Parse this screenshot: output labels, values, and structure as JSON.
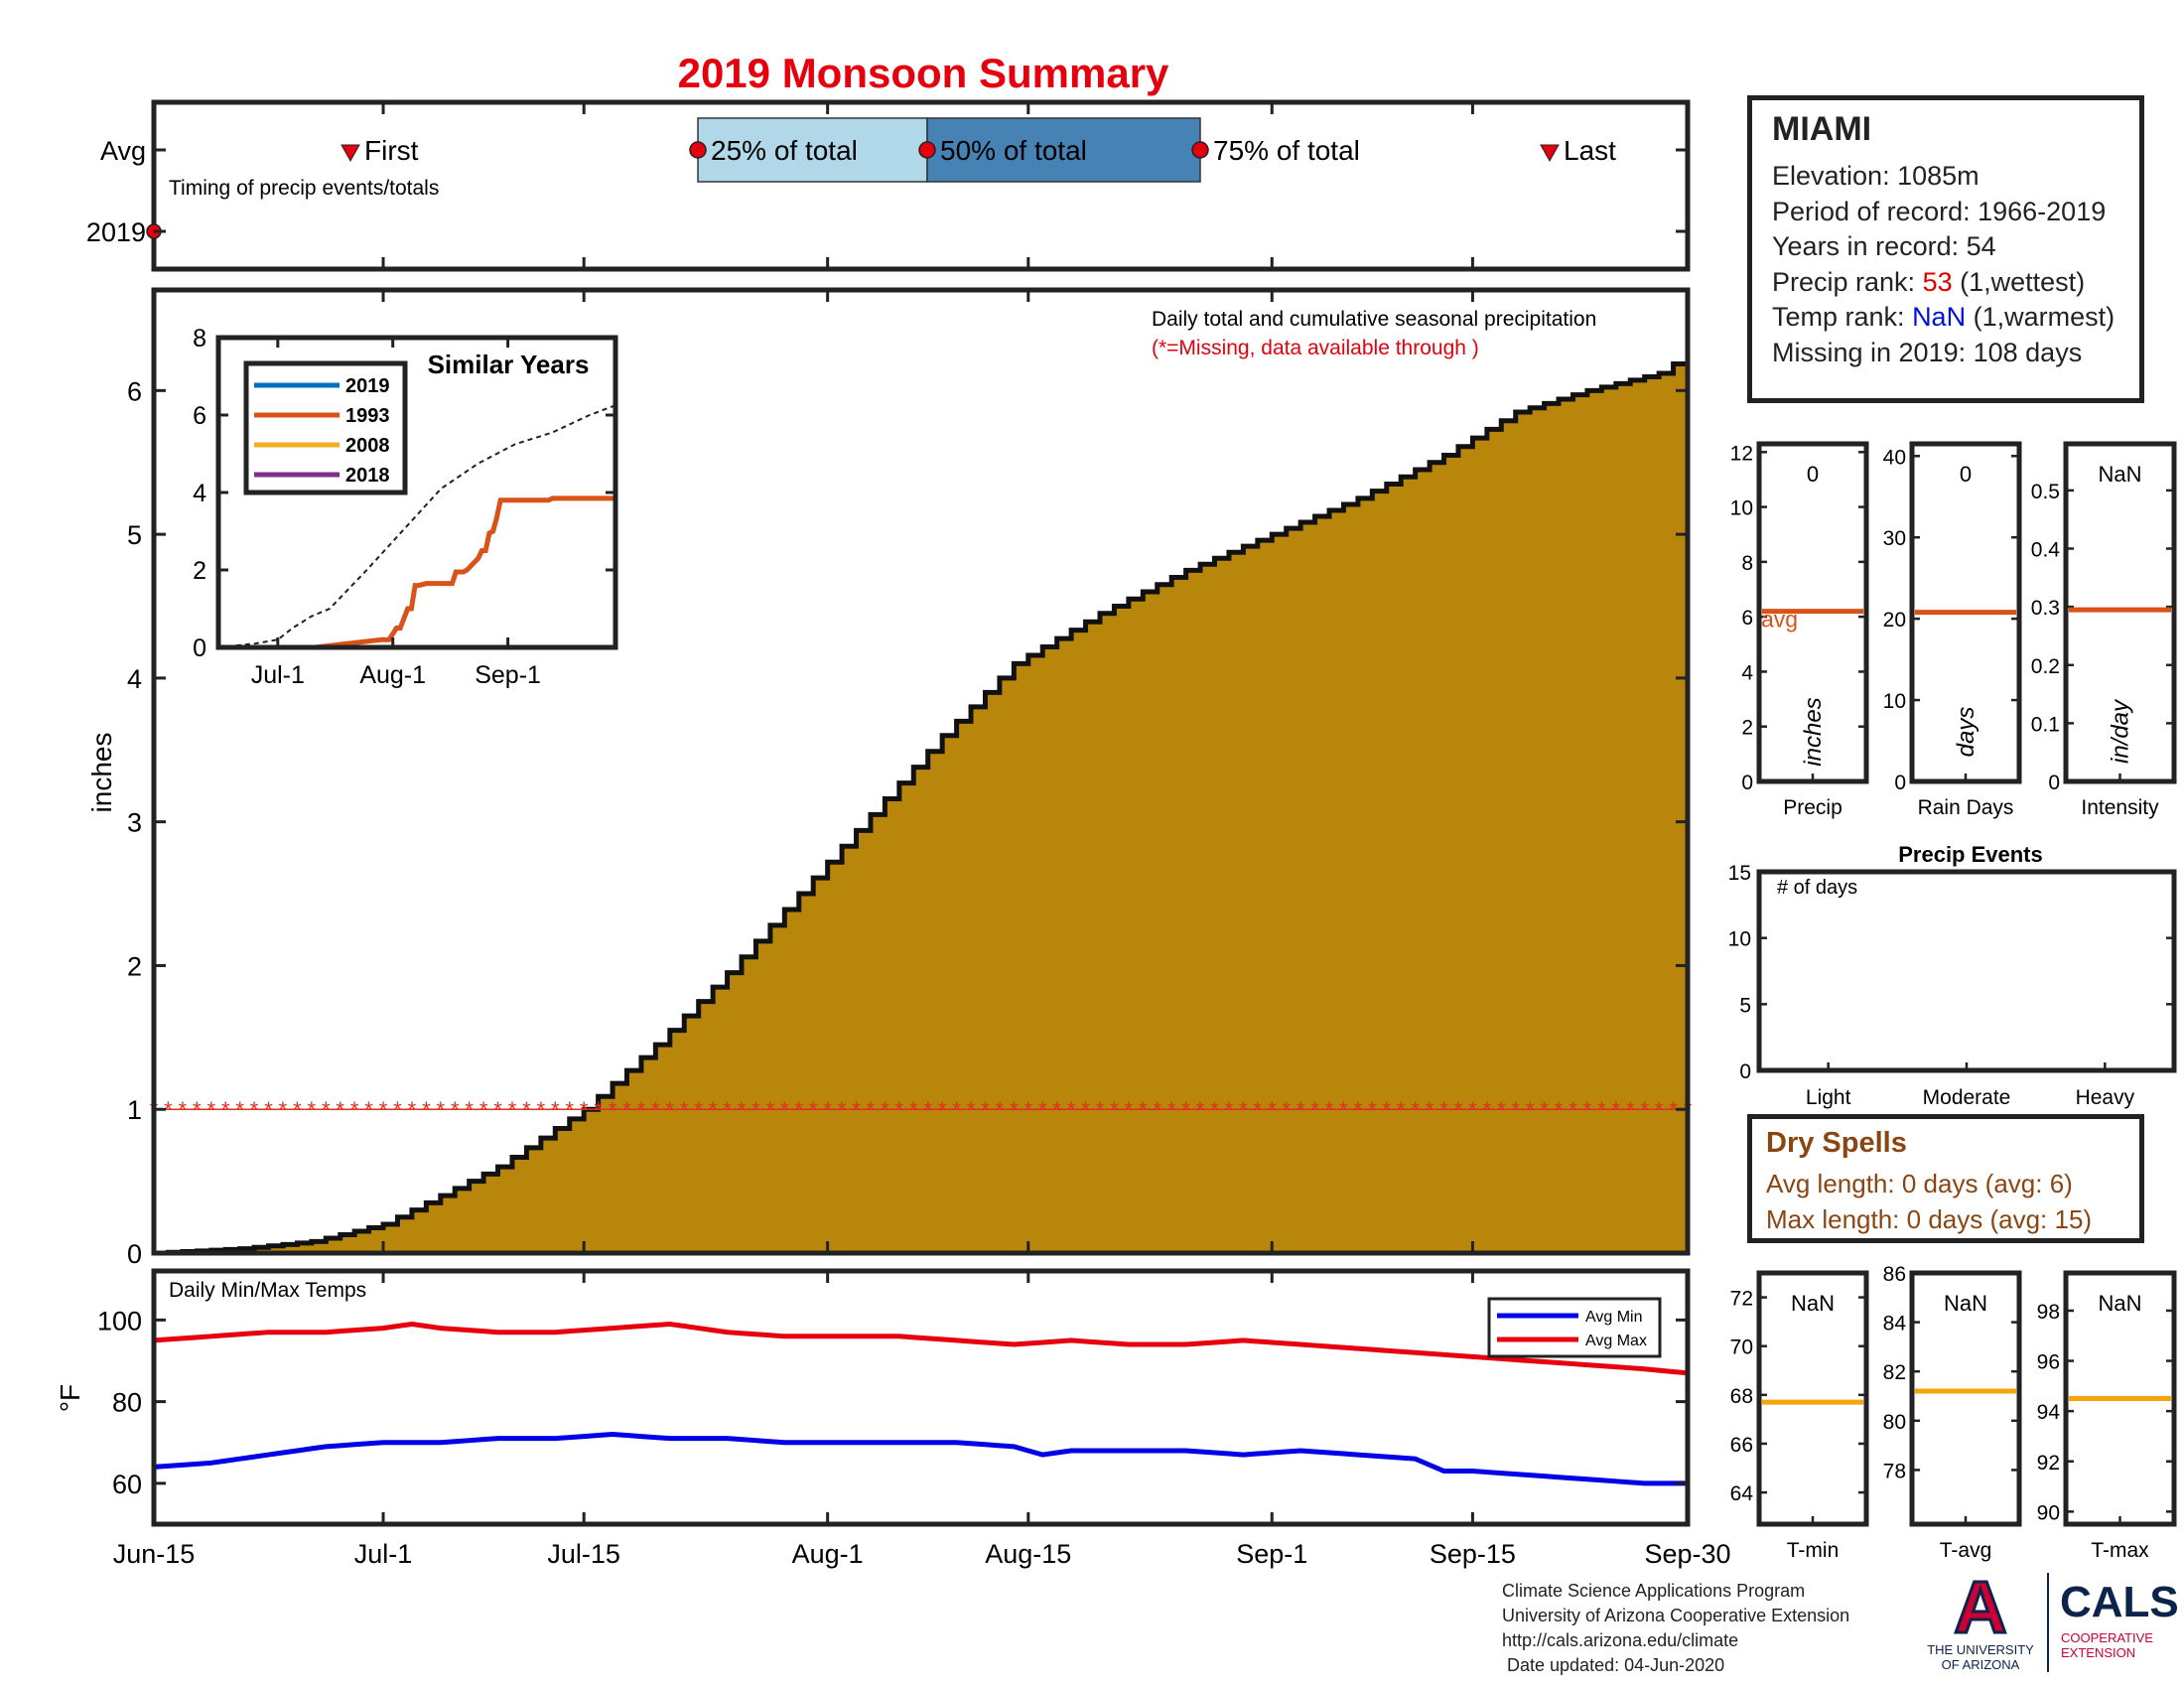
{
  "title": "2019 Monsoon Summary",
  "timing": {
    "row_avg": "Avg",
    "row_year": "2019",
    "caption": "Timing of precip events/totals",
    "first": "First",
    "p25": "25% of total",
    "p50": "50% of total",
    "p75": "75% of total",
    "last": "Last"
  },
  "station": {
    "name": "MIAMI",
    "elevation": "Elevation: 1085m",
    "period": "Period of record: 1966-2019",
    "years": "Years in record: 54",
    "precip_rank_label": "Precip rank: ",
    "precip_rank_value": "53",
    "precip_rank_note": " (1,wettest)",
    "temp_rank_label": "Temp rank: ",
    "temp_rank_value": "NaN",
    "temp_rank_note": " (1,warmest)",
    "missing": "Missing in 2019: 108 days"
  },
  "main_chart_text": {
    "note": "Daily total and cumulative seasonal precipitation",
    "missing_note": "(*=Missing, data available through )",
    "ylabel": "inches",
    "yticks": [
      "0",
      "1",
      "2",
      "3",
      "4",
      "5",
      "6"
    ]
  },
  "chart_data": [
    {
      "type": "area",
      "name": "main-cumulative-precip",
      "ylabel": "inches",
      "ylim": [
        0,
        6.7
      ],
      "xlim": [
        "Jun-15",
        "Sep-30"
      ],
      "xticks": [
        "Jun-15",
        "Jul-1",
        "Jul-15",
        "Aug-1",
        "Aug-15",
        "Sep-1",
        "Sep-15",
        "Sep-30"
      ],
      "xtick_days": [
        0,
        16,
        30,
        47,
        61,
        78,
        92,
        107
      ],
      "series": [
        {
          "name": "avg-cumulative",
          "x": [
            0,
            6,
            11,
            16,
            20,
            24,
            30,
            35,
            40,
            45,
            50,
            55,
            60,
            66,
            72,
            78,
            84,
            90,
            95,
            100,
            105,
            107
          ],
          "values": [
            0,
            0.03,
            0.08,
            0.2,
            0.4,
            0.6,
            1.0,
            1.45,
            1.95,
            2.5,
            3.05,
            3.6,
            4.1,
            4.45,
            4.75,
            5.0,
            5.25,
            5.55,
            5.85,
            6.0,
            6.12,
            6.25
          ]
        },
        {
          "name": "missing-marker",
          "value": 1.0,
          "x_start": 0,
          "x_end": 107,
          "marker": "*"
        }
      ],
      "colors": {
        "area": "#b8860b",
        "outline": "#111111",
        "missing": "#e0301e"
      }
    },
    {
      "type": "line",
      "name": "similar-years-inset",
      "title": "Similar Years",
      "xticks": [
        "Jul-1",
        "Aug-1",
        "Sep-1"
      ],
      "xtick_days": [
        16,
        47,
        78
      ],
      "yticks": [
        "0",
        "2",
        "4",
        "6",
        "8"
      ],
      "ylim": [
        0,
        8
      ],
      "series": [
        {
          "name": "2019",
          "color": "#0072bd",
          "x": [
            0,
            107
          ],
          "values": [
            0,
            0
          ]
        },
        {
          "name": "1993",
          "color": "#d95319",
          "x": [
            0,
            26,
            44,
            45,
            46,
            48,
            49,
            51,
            52,
            53,
            54,
            56,
            63,
            64,
            66,
            67,
            70,
            71,
            72,
            73,
            74,
            75,
            76,
            77,
            89,
            90,
            107
          ],
          "values": [
            0,
            0,
            0.2,
            0.2,
            0.2,
            0.5,
            0.5,
            1.0,
            1.0,
            1.6,
            1.6,
            1.65,
            1.65,
            1.95,
            1.95,
            2.0,
            2.3,
            2.5,
            2.5,
            2.95,
            3.0,
            3.35,
            3.8,
            3.8,
            3.8,
            3.85,
            3.85
          ]
        },
        {
          "name": "2008",
          "color": "#edb120",
          "x": [
            0,
            107
          ],
          "values": [
            0,
            0
          ]
        },
        {
          "name": "2018",
          "color": "#7e2f8e",
          "x": [
            0,
            107
          ],
          "values": [
            0,
            0
          ]
        },
        {
          "name": "average",
          "x": [
            0,
            10,
            16,
            20,
            25,
            30,
            40,
            50,
            60,
            70,
            80,
            90,
            100,
            107
          ],
          "values": [
            0,
            0.1,
            0.2,
            0.5,
            0.8,
            1.0,
            2.0,
            3.05,
            4.1,
            4.75,
            5.25,
            5.55,
            6.0,
            6.25
          ]
        }
      ]
    },
    {
      "type": "line",
      "name": "daily-temps",
      "title": "Daily Min/Max Temps",
      "ylabel": "°F",
      "ylim": [
        50,
        112
      ],
      "yticks": [
        "60",
        "80",
        "100"
      ],
      "series": [
        {
          "name": "Avg Max",
          "color": "#e6000e",
          "x": [
            0,
            4,
            8,
            12,
            16,
            18,
            20,
            24,
            28,
            32,
            36,
            40,
            44,
            48,
            52,
            56,
            60,
            64,
            68,
            72,
            76,
            80,
            84,
            88,
            92,
            96,
            100,
            104,
            107
          ],
          "values": [
            95,
            96,
            97,
            97,
            98,
            99,
            98,
            97,
            97,
            98,
            99,
            97,
            96,
            96,
            96,
            95,
            94,
            95,
            94,
            94,
            95,
            94,
            93,
            92,
            91,
            90,
            89,
            88,
            87
          ]
        },
        {
          "name": "Avg Min",
          "color": "#0000e6",
          "x": [
            0,
            4,
            8,
            12,
            16,
            20,
            24,
            28,
            32,
            36,
            40,
            44,
            48,
            52,
            56,
            60,
            62,
            64,
            68,
            72,
            76,
            80,
            84,
            88,
            90,
            92,
            96,
            100,
            104,
            107
          ],
          "values": [
            64,
            65,
            67,
            69,
            70,
            70,
            71,
            71,
            72,
            71,
            71,
            70,
            70,
            70,
            70,
            69,
            67,
            68,
            68,
            68,
            67,
            68,
            67,
            66,
            63,
            63,
            62,
            61,
            60,
            60
          ]
        }
      ]
    },
    {
      "type": "bar",
      "name": "precip-panel",
      "xlabel": "Precip",
      "inner_label": "inches",
      "value_text": "0",
      "avg_label": "avg",
      "yticks": [
        "0",
        "2",
        "4",
        "6",
        "8",
        "10",
        "12"
      ],
      "ylim": [
        0,
        12.3
      ],
      "values": [
        0
      ],
      "avg": 6.2,
      "avg_color": "#d95319"
    },
    {
      "type": "bar",
      "name": "raindays-panel",
      "xlabel": "Rain Days",
      "inner_label": "days",
      "value_text": "0",
      "yticks": [
        "0",
        "10",
        "20",
        "30",
        "40"
      ],
      "ylim": [
        0,
        41.5
      ],
      "values": [
        0
      ],
      "avg": 20.8,
      "avg_color": "#d95319"
    },
    {
      "type": "bar",
      "name": "intensity-panel",
      "xlabel": "Intensity",
      "inner_label": "in/day",
      "value_text": "NaN",
      "yticks": [
        "0",
        "0.1",
        "0.2",
        "0.3",
        "0.4",
        "0.5"
      ],
      "ylim": [
        0,
        0.58
      ],
      "values": [],
      "avg": 0.295,
      "avg_color": "#d95319"
    },
    {
      "type": "bar",
      "name": "precip-events",
      "title": "Precip Events",
      "ylabel_inner": "# of days",
      "categories": [
        "Light",
        "Moderate",
        "Heavy"
      ],
      "values": [
        0,
        0,
        0
      ],
      "yticks": [
        "0",
        "5",
        "10",
        "15"
      ],
      "ylim": [
        0,
        15
      ]
    },
    {
      "type": "bar",
      "name": "tmin-panel",
      "xlabel": "T-min",
      "value_text": "NaN",
      "yticks": [
        "64",
        "66",
        "68",
        "70",
        "72"
      ],
      "ylim": [
        62.7,
        73
      ],
      "avg": 67.7,
      "avg_color": "#f5a40a"
    },
    {
      "type": "bar",
      "name": "tavg-panel",
      "xlabel": "T-avg",
      "value_text": "NaN",
      "yticks": [
        "78",
        "80",
        "82",
        "84",
        "86"
      ],
      "ylim": [
        75.8,
        86
      ],
      "avg": 81.2,
      "avg_color": "#f5a40a"
    },
    {
      "type": "bar",
      "name": "tmax-panel",
      "xlabel": "T-max",
      "value_text": "NaN",
      "yticks": [
        "90",
        "92",
        "94",
        "96",
        "98"
      ],
      "ylim": [
        89.5,
        99.5
      ],
      "avg": 94.5,
      "avg_color": "#f5a40a"
    }
  ],
  "dry_spells": {
    "title": "Dry Spells",
    "avg_length": "Avg length: 0 days (avg: 6)",
    "max_length": "Max length: 0 days (avg: 15)"
  },
  "footer": {
    "line1": "Climate Science Applications Program",
    "line2": "University of Arizona Cooperative Extension",
    "line3": "http://cals.arizona.edu/climate",
    "line4": " Date updated: 04-Jun-2020"
  },
  "logo": {
    "ua_letter": "A",
    "ua_line1": "THE UNIVERSITY",
    "ua_line2": "OF ARIZONA",
    "cals": "CALS",
    "cals_line1": "COOPERATIVE",
    "cals_line2": "EXTENSION",
    "ua_red": "#cc0033",
    "ua_navy": "#0c234b"
  }
}
